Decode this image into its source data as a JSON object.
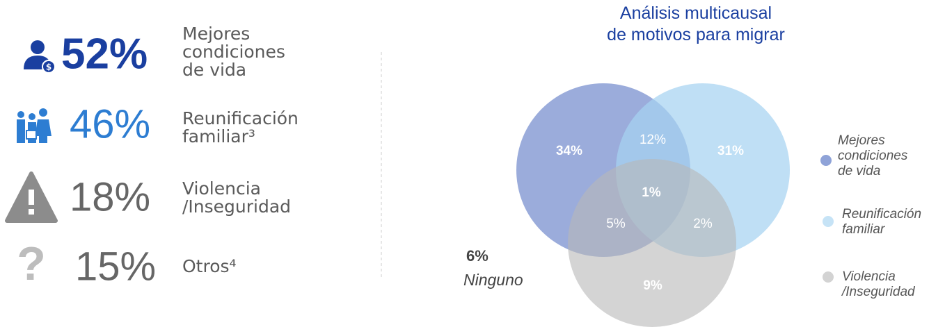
{
  "stats": [
    {
      "value": "52%",
      "label": [
        "Mejores",
        "condiciones",
        "de vida"
      ]
    },
    {
      "value": "46%",
      "label": [
        "Reunificación",
        "familiar³"
      ]
    },
    {
      "value": "18%",
      "label": [
        "Violencia",
        "/Inseguridad"
      ]
    },
    {
      "value": "15%",
      "label": [
        "Otros⁴"
      ]
    }
  ],
  "venn": {
    "title": [
      "Análisis multicausal",
      "de motivos para migrar"
    ],
    "regions": {
      "a_only": "34%",
      "ab": "12%",
      "b_only": "31%",
      "abc": "1%",
      "ac": "5%",
      "bc": "2%",
      "c_only": "9%"
    },
    "none": {
      "value": "6%",
      "label": "Ninguno"
    },
    "legend": [
      [
        "Mejores",
        "condiciones",
        "de vida"
      ],
      [
        "Reunificación",
        "familiar"
      ],
      [
        "Violencia",
        "/Inseguridad"
      ]
    ]
  }
}
